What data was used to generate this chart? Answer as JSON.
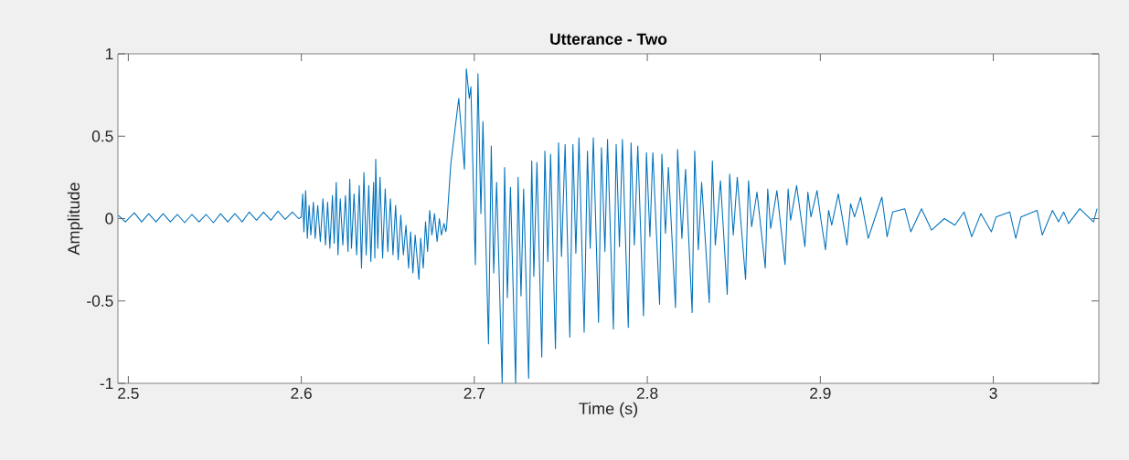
{
  "chart_data": {
    "type": "line",
    "title": "Utterance - Two",
    "xlabel": "Time (s)",
    "ylabel": "Amplitude",
    "xlim": [
      2.494,
      3.061
    ],
    "ylim": [
      -1,
      1
    ],
    "xticks": [
      2.5,
      2.6,
      2.7,
      2.8,
      2.9,
      3
    ],
    "yticks": [
      -1,
      -0.5,
      0,
      0.5,
      1
    ],
    "series": [
      {
        "color": "#0072bd",
        "x": [
          2.4942,
          2.4983,
          2.5035,
          2.5077,
          2.5118,
          2.516,
          2.5201,
          2.5243,
          2.5284,
          2.5326,
          2.5367,
          2.5409,
          2.545,
          2.5492,
          2.5533,
          2.5575,
          2.5616,
          2.5658,
          2.5699,
          2.5741,
          2.5782,
          2.5824,
          2.5865,
          2.5907,
          2.5948,
          2.5985,
          2.6,
          2.6008,
          2.6015,
          2.6025,
          2.6035,
          2.6045,
          2.6055,
          2.607,
          2.608,
          2.6095,
          2.611,
          2.6125,
          2.614,
          2.6152,
          2.6165,
          2.618,
          2.619,
          2.6202,
          2.6212,
          2.6225,
          2.624,
          2.6255,
          2.627,
          2.628,
          2.629,
          2.6305,
          2.632,
          2.6335,
          2.6348,
          2.6362,
          2.6375,
          2.639,
          2.6402,
          2.6418,
          2.6425,
          2.643,
          2.6442,
          2.6455,
          2.647,
          2.6485,
          2.65,
          2.6515,
          2.653,
          2.6545,
          2.656,
          2.6575,
          2.659,
          2.6605,
          2.662,
          2.6632,
          2.6645,
          2.6658,
          2.668,
          2.669,
          2.6705,
          2.6718,
          2.673,
          2.6742,
          2.6755,
          2.677,
          2.6785,
          2.6798,
          2.681,
          2.6825,
          2.6835,
          2.684,
          2.6864,
          2.691,
          2.6943,
          2.6954,
          2.6971,
          2.698,
          2.7006,
          2.7021,
          2.7038,
          2.705,
          2.7063,
          2.7082,
          2.7098,
          2.7112,
          2.7129,
          2.7161,
          2.7175,
          2.7191,
          2.7209,
          2.7239,
          2.7253,
          2.727,
          2.7285,
          2.7314,
          2.7332,
          2.7344,
          2.7362,
          2.739,
          2.7408,
          2.7425,
          2.7441,
          2.7469,
          2.7487,
          2.7504,
          2.7525,
          2.7552,
          2.757,
          2.7587,
          2.7605,
          2.7635,
          2.7654,
          2.767,
          2.7688,
          2.7718,
          2.7735,
          2.7755,
          2.777,
          2.7804,
          2.782,
          2.7839,
          2.7856,
          2.789,
          2.7906,
          2.7925,
          2.7945,
          2.7978,
          2.7995,
          2.8015,
          2.8032,
          2.8071,
          2.8084,
          2.8105,
          2.8122,
          2.8163,
          2.8175,
          2.82,
          2.8221,
          2.8259,
          2.8274,
          2.8295,
          2.8314,
          2.8358,
          2.8376,
          2.8393,
          2.8423,
          2.8462,
          2.8476,
          2.8497,
          2.852,
          2.8568,
          2.8585,
          2.8603,
          2.8634,
          2.8682,
          2.8696,
          2.8713,
          2.8749,
          2.8796,
          2.8814,
          2.8828,
          2.8863,
          2.8911,
          2.8928,
          2.8946,
          2.8981,
          2.9004,
          2.903,
          2.9048,
          2.9066,
          2.9104,
          2.9154,
          2.9175,
          2.9198,
          2.9233,
          2.9277,
          2.933,
          2.9356,
          2.9386,
          2.9418,
          2.9488,
          2.9523,
          2.9585,
          2.9643,
          2.9717,
          2.9778,
          2.9831,
          2.9875,
          2.9928,
          2.9989,
          3.0016,
          3.0095,
          3.013,
          3.016,
          3.0253,
          3.0283,
          3.0342,
          3.0377,
          3.0407,
          3.0435,
          3.05,
          3.0579,
          3.06
        ],
        "values": [
          0.02,
          -0.02,
          0.035,
          -0.02,
          0.03,
          -0.02,
          0.03,
          -0.02,
          0.025,
          -0.025,
          0.025,
          -0.02,
          0.025,
          -0.025,
          0.03,
          -0.02,
          0.03,
          -0.02,
          0.04,
          -0.01,
          0.04,
          -0.01,
          0.045,
          -0.005,
          0.04,
          0.0,
          0.01,
          0.15,
          -0.08,
          0.17,
          -0.12,
          0.08,
          -0.1,
          0.1,
          -0.12,
          0.08,
          -0.14,
          0.12,
          -0.16,
          0.1,
          -0.18,
          0.14,
          -0.15,
          0.22,
          -0.22,
          0.12,
          -0.16,
          0.14,
          -0.2,
          0.24,
          -0.18,
          0.15,
          -0.22,
          0.2,
          -0.3,
          0.28,
          -0.22,
          0.2,
          -0.26,
          0.22,
          -0.24,
          0.36,
          -0.18,
          0.25,
          -0.24,
          0.18,
          -0.2,
          0.12,
          -0.22,
          0.08,
          -0.25,
          0.02,
          -0.22,
          -0.04,
          -0.3,
          -0.08,
          -0.33,
          -0.1,
          -0.37,
          -0.12,
          -0.3,
          -0.02,
          -0.2,
          0.05,
          -0.1,
          0.03,
          -0.14,
          0.0,
          -0.1,
          -0.03,
          -0.08,
          -0.05,
          0.33,
          0.73,
          0.3,
          0.91,
          0.73,
          0.8,
          -0.28,
          0.88,
          0.03,
          0.59,
          0.01,
          -0.76,
          0.44,
          -0.33,
          0.22,
          -1.0,
          0.31,
          -0.48,
          0.19,
          -1.0,
          0.25,
          -0.47,
          0.18,
          -0.97,
          0.35,
          -0.35,
          0.34,
          -0.84,
          0.41,
          -0.26,
          0.39,
          -0.79,
          0.46,
          -0.23,
          0.45,
          -0.72,
          0.45,
          -0.21,
          0.49,
          -0.69,
          0.41,
          -0.18,
          0.49,
          -0.63,
          0.43,
          -0.2,
          0.48,
          -0.67,
          0.45,
          -0.17,
          0.48,
          -0.66,
          0.46,
          -0.16,
          0.44,
          -0.59,
          0.4,
          -0.11,
          0.4,
          -0.52,
          0.39,
          -0.09,
          0.31,
          -0.54,
          0.42,
          -0.12,
          0.3,
          -0.57,
          0.41,
          -0.19,
          0.22,
          -0.51,
          0.35,
          -0.16,
          0.23,
          -0.46,
          0.27,
          -0.1,
          0.25,
          -0.37,
          0.23,
          -0.05,
          0.16,
          -0.3,
          0.18,
          -0.06,
          0.17,
          -0.28,
          0.18,
          -0.01,
          0.2,
          -0.17,
          0.16,
          0.01,
          0.17,
          -0.01,
          -0.19,
          0.05,
          -0.04,
          0.15,
          -0.16,
          0.09,
          0.01,
          0.13,
          -0.12,
          0.05,
          0.13,
          -0.11,
          0.04,
          0.06,
          -0.08,
          0.06,
          -0.07,
          0.0,
          -0.04,
          0.04,
          -0.11,
          0.03,
          -0.08,
          0.01,
          0.04,
          -0.12,
          0.01,
          0.05,
          -0.1,
          0.05,
          -0.02,
          0.04,
          -0.03,
          0.06,
          -0.02,
          0.06
        ]
      }
    ]
  }
}
